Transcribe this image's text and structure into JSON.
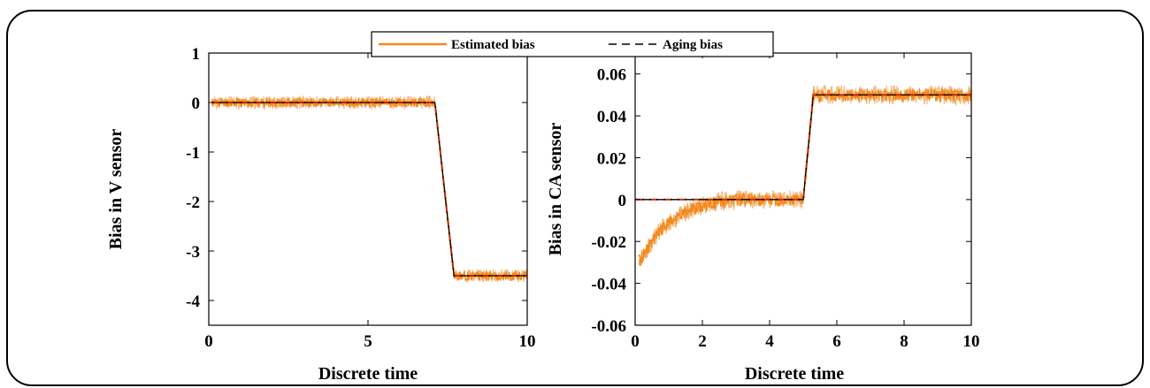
{
  "colors": {
    "estimated": "#f28a1e",
    "estimated_light": "#f5b070",
    "aging": "#000000",
    "aging_mix": "#c42a00"
  },
  "legend": {
    "estimated_label": "Estimated bias",
    "aging_label": "Aging bias",
    "placement": "top-center"
  },
  "chart_data": [
    {
      "type": "line",
      "xlabel": "Discrete time",
      "ylabel": "Bias in V sensor",
      "xlim": [
        0,
        10
      ],
      "ylim": [
        -4.5,
        1
      ],
      "xticks": [
        0,
        5,
        10
      ],
      "xtick_labels": [
        "0",
        "5",
        "10"
      ],
      "yticks": [
        1,
        0,
        -1,
        -2,
        -3,
        -4
      ],
      "ytick_labels": [
        "1",
        "0",
        "-1",
        "-2",
        "-3",
        "-4"
      ],
      "series": [
        {
          "name": "Aging bias",
          "style": "dashed",
          "x": [
            0.1,
            7.1,
            7.7,
            10
          ],
          "y": [
            0,
            0,
            -3.5,
            -3.5
          ]
        },
        {
          "name": "Estimated bias",
          "style": "noisy",
          "x": [
            0.1,
            7.1,
            7.7,
            10
          ],
          "y": [
            0,
            0,
            -3.5,
            -3.5
          ],
          "noise_amplitude": 0.13
        }
      ]
    },
    {
      "type": "line",
      "xlabel": "Discrete time",
      "ylabel": "Bias in CA sensor",
      "xlim": [
        0,
        10
      ],
      "ylim": [
        -0.06,
        0.07
      ],
      "xticks": [
        0,
        2,
        4,
        6,
        8,
        10
      ],
      "xtick_labels": [
        "0",
        "2",
        "4",
        "6",
        "8",
        "10"
      ],
      "yticks": [
        0.06,
        0.04,
        0.02,
        0,
        -0.02,
        -0.04,
        -0.06
      ],
      "ytick_labels": [
        "0.06",
        "0.04",
        "0.02",
        "0",
        "-0.02",
        "-0.04",
        "-0.06"
      ],
      "series": [
        {
          "name": "Aging bias",
          "style": "dashed",
          "x": [
            0,
            5.0,
            5.3,
            10
          ],
          "y": [
            0,
            0,
            0.05,
            0.05
          ]
        },
        {
          "name": "Estimated bias",
          "style": "noisy",
          "x": [
            0.1,
            0.3,
            0.5,
            0.8,
            1.2,
            1.6,
            2.0,
            2.5,
            3.0,
            4.0,
            5.0,
            5.3,
            10
          ],
          "y": [
            -0.03,
            -0.025,
            -0.02,
            -0.014,
            -0.009,
            -0.005,
            -0.003,
            -0.001,
            0,
            0,
            0,
            0.05,
            0.05
          ],
          "noise_amplitude": 0.0045
        }
      ]
    }
  ]
}
